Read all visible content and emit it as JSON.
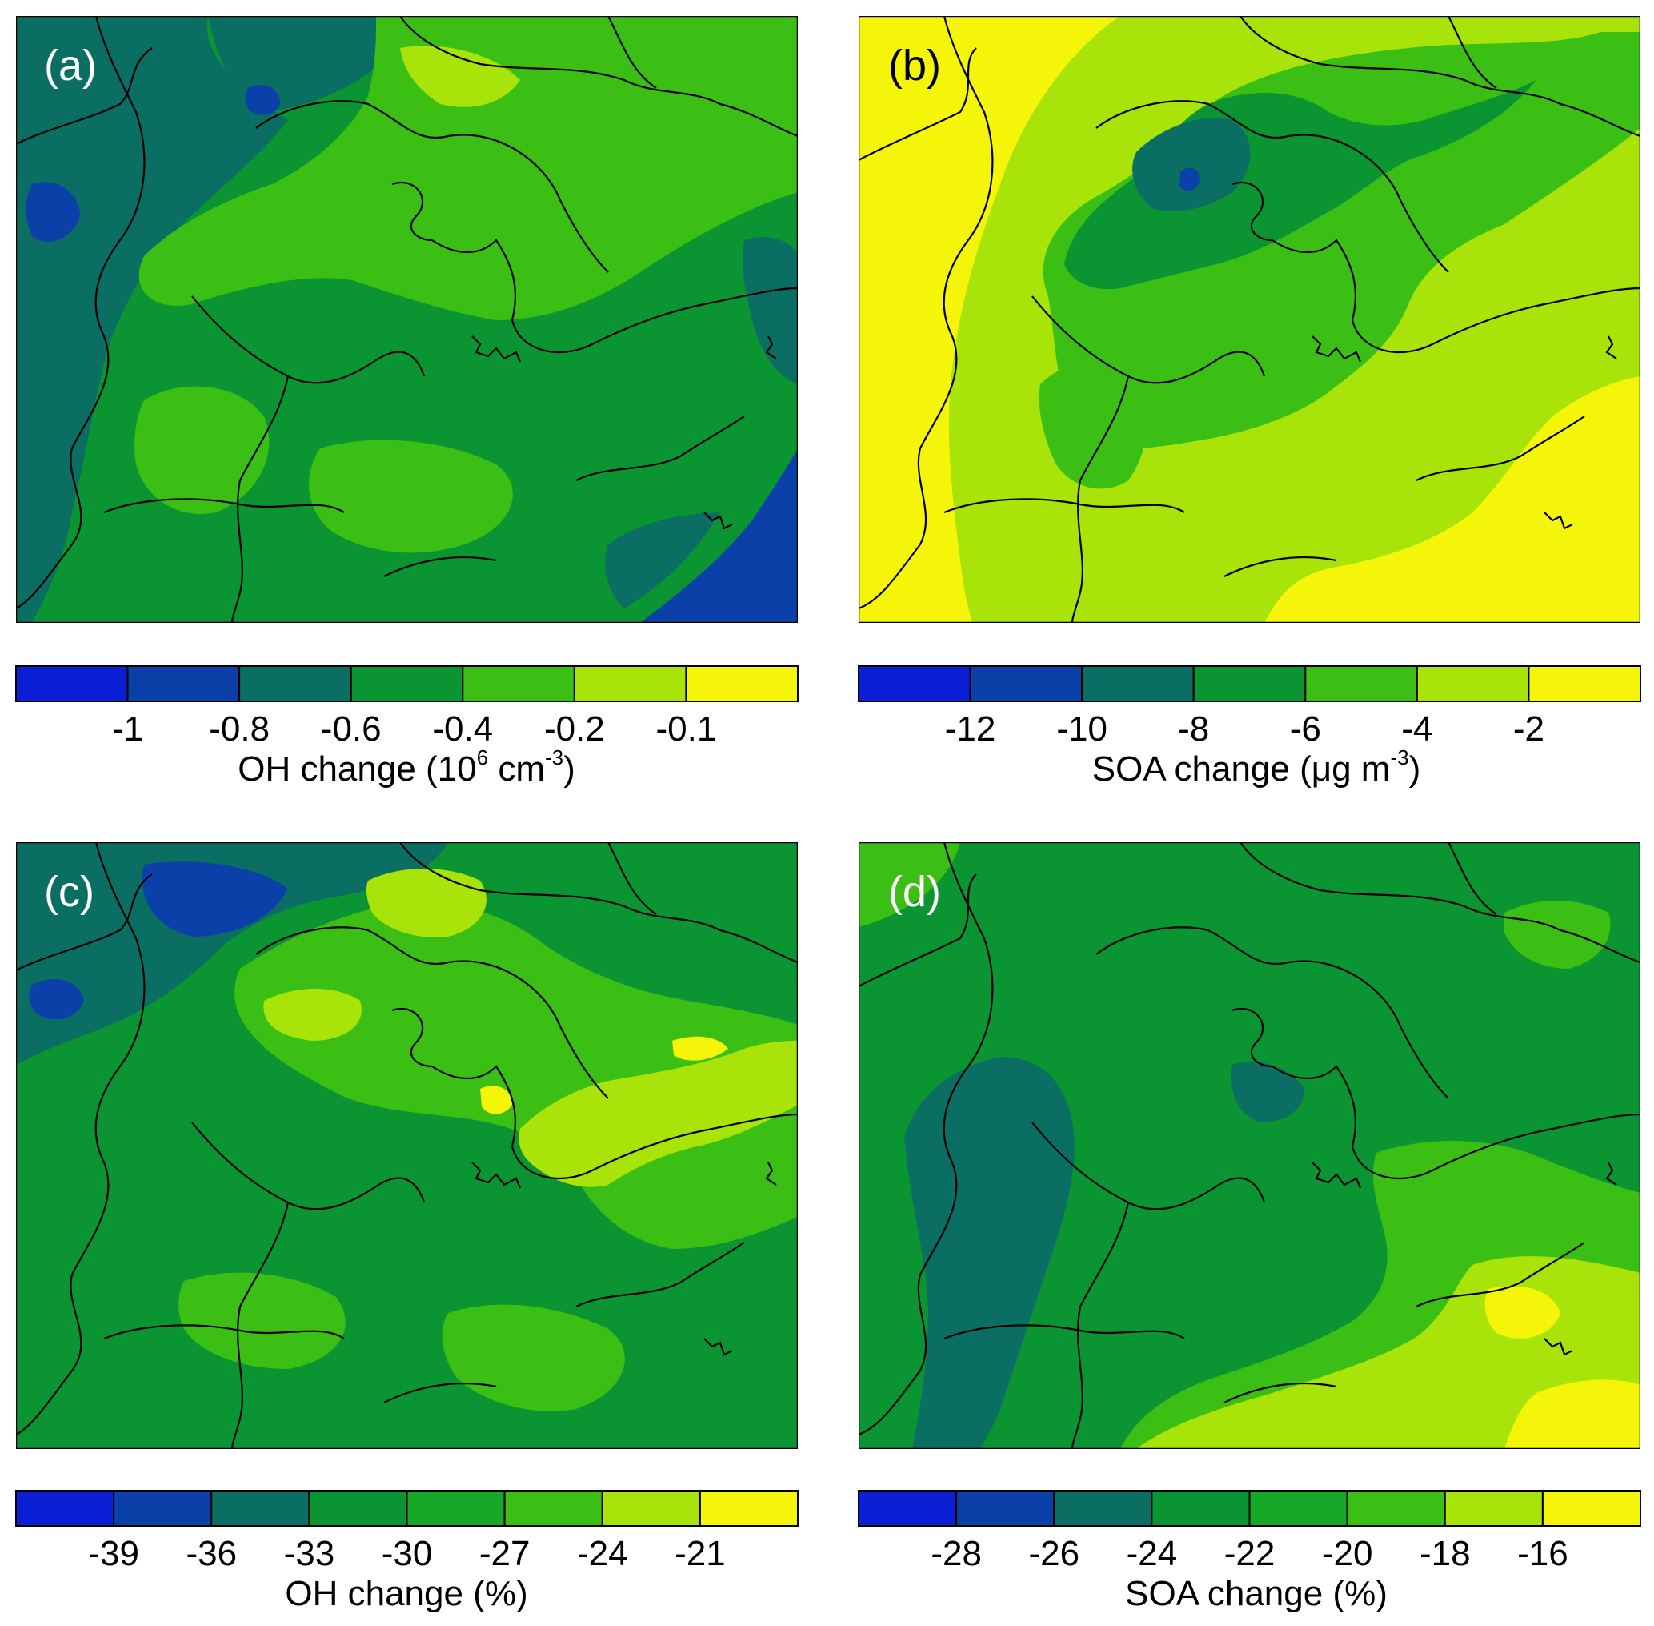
{
  "colors": {
    "c0": "#0a1fd6",
    "c1": "#0a40a8",
    "c2": "#0a6e62",
    "c3": "#0a9432",
    "c4": "#3cbf14",
    "c5": "#a8e30a",
    "c6": "#f5f50a",
    "border": "#000000"
  },
  "panels": [
    {
      "id": "a",
      "label": "(a)",
      "base_color": "c3",
      "bins": [
        "c0",
        "c1",
        "c2",
        "c3",
        "c4",
        "c5",
        "c6"
      ],
      "ticks": [
        "-1",
        "-0.8",
        "-0.6",
        "-0.4",
        "-0.2",
        "-0.1"
      ],
      "colorbar_title": "OH change (10",
      "title_sup1": "6",
      "title_mid": " cm",
      "title_sup2": "-3",
      "title_end": ")"
    },
    {
      "id": "b",
      "label": "(b)",
      "base_color": "c5",
      "bins": [
        "c0",
        "c1",
        "c2",
        "c3",
        "c4",
        "c5",
        "c6"
      ],
      "ticks": [
        "-12",
        "-10",
        "-8",
        "-6",
        "-4",
        "-2"
      ],
      "colorbar_title": "SOA change (μg m",
      "title_sup1": "-3",
      "title_mid": "",
      "title_sup2": "",
      "title_end": ")"
    },
    {
      "id": "c",
      "label": "(c)",
      "base_color": "c3",
      "bins": [
        "c0",
        "c1",
        "c2",
        "c3",
        "c3b",
        "c4",
        "c5",
        "c6"
      ],
      "ticks": [
        "-39",
        "-36",
        "-33",
        "-30",
        "-27",
        "-24",
        "-21"
      ],
      "colorbar_title": "OH change (%)",
      "title_sup1": "",
      "title_mid": "",
      "title_sup2": "",
      "title_end": ""
    },
    {
      "id": "d",
      "label": "(d)",
      "base_color": "c3",
      "bins": [
        "c0",
        "c1",
        "c2",
        "c3",
        "c3b",
        "c4",
        "c5",
        "c6"
      ],
      "ticks": [
        "-28",
        "-26",
        "-24",
        "-22",
        "-20",
        "-18",
        "-16"
      ],
      "colorbar_title": "SOA change (%)",
      "title_sup1": "",
      "title_mid": "",
      "title_sup2": "",
      "title_end": ""
    }
  ]
}
